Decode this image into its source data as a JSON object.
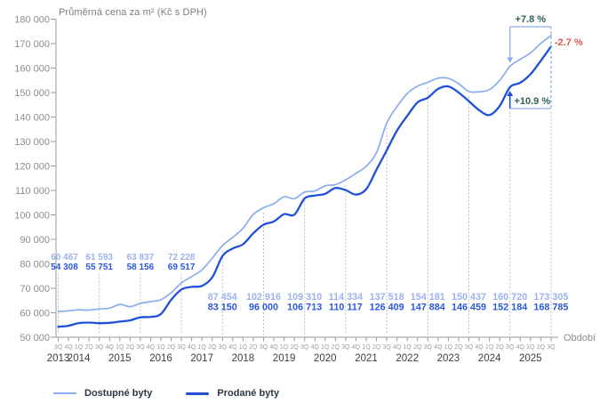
{
  "chart_data": {
    "type": "line",
    "title": "Průměrná cena za m² (Kč s DPH)",
    "xlabel": "Období",
    "ylim": [
      50000,
      180000
    ],
    "ytick_step": 10000,
    "quarter_labels": [
      "3Q",
      "4Q",
      "1Q",
      "2Q",
      "3Q",
      "4Q",
      "1Q",
      "2Q",
      "3Q",
      "4Q",
      "1Q",
      "2Q",
      "3Q",
      "4Q",
      "1Q",
      "2Q",
      "3Q",
      "4Q",
      "1Q",
      "2Q",
      "3Q",
      "4Q",
      "1Q",
      "2Q",
      "3Q",
      "4Q",
      "1Q",
      "2Q",
      "3Q",
      "4Q",
      "1Q",
      "2Q",
      "3Q",
      "4Q",
      "1Q",
      "2Q",
      "3Q",
      "4Q",
      "1Q",
      "2Q",
      "3Q",
      "4Q",
      "1Q",
      "2Q",
      "3Q",
      "4Q",
      "1Q",
      "2Q",
      "3Q"
    ],
    "years": [
      {
        "label": "2013",
        "q": 0
      },
      {
        "label": "2014",
        "q": 2
      },
      {
        "label": "2015",
        "q": 6
      },
      {
        "label": "2016",
        "q": 10
      },
      {
        "label": "2017",
        "q": 14
      },
      {
        "label": "2018",
        "q": 18
      },
      {
        "label": "2019",
        "q": 22
      },
      {
        "label": "2020",
        "q": 26
      },
      {
        "label": "2021",
        "q": 30
      },
      {
        "label": "2022",
        "q": 34
      },
      {
        "label": "2023",
        "q": 38
      },
      {
        "label": "2024",
        "q": 42
      },
      {
        "label": "2025",
        "q": 46
      }
    ],
    "series": [
      {
        "name": "Dostupné byty",
        "color": "#8aacf0",
        "label_color": "#9bb2ee",
        "width": 1.7,
        "values": [
          60467,
          60800,
          61200,
          61100,
          61593,
          61900,
          63400,
          62500,
          63837,
          64600,
          65300,
          68200,
          72228,
          74800,
          77500,
          82300,
          87454,
          90800,
          94500,
          100200,
          102916,
          104600,
          107400,
          106600,
          109310,
          109800,
          111900,
          112400,
          114334,
          117000,
          119900,
          125500,
          137518,
          144300,
          149600,
          152600,
          154181,
          155900,
          155800,
          153600,
          150437,
          150300,
          151200,
          155000,
          160720,
          163600,
          166200,
          170100,
          173305
        ]
      },
      {
        "name": "Prodané byty",
        "color": "#1e50d9",
        "label_color": "#2b57dd",
        "width": 2.3,
        "values": [
          54308,
          54700,
          55800,
          56000,
          55751,
          55900,
          56400,
          56900,
          58156,
          58300,
          59500,
          65300,
          69517,
          70600,
          71000,
          74500,
          83150,
          86300,
          88000,
          92500,
          96000,
          97300,
          100300,
          100100,
          106713,
          107900,
          108600,
          111000,
          110117,
          108300,
          110500,
          118500,
          126409,
          134500,
          140500,
          146000,
          147884,
          151500,
          152500,
          150000,
          146459,
          142800,
          140800,
          144500,
          152184,
          154000,
          157500,
          163000,
          168785
        ]
      }
    ],
    "label_indices": [
      0,
      4,
      8,
      12,
      16,
      20,
      24,
      28,
      32,
      36,
      40,
      44,
      48
    ],
    "annotations": {
      "available_yoy": "+7.8 %",
      "sold_yoy": "+10.9 %",
      "last_quarter_change": "-2.7 %"
    }
  },
  "legend": [
    {
      "label": "Dostupné byty",
      "color": "#8aacf0"
    },
    {
      "label": "Prodané byty",
      "color": "#1e50d9"
    }
  ],
  "colors": {
    "annotation_teal": "#2e5f58",
    "annotation_red": "#e2564b",
    "annotation_blue": "#7fa5ef",
    "axis": "#9a9a9a",
    "grid_dot": "#bcbcbc",
    "text_gray": "#8c8c8c",
    "quarter_text": "#9c9c9c",
    "year_text": "#3a3e45"
  }
}
